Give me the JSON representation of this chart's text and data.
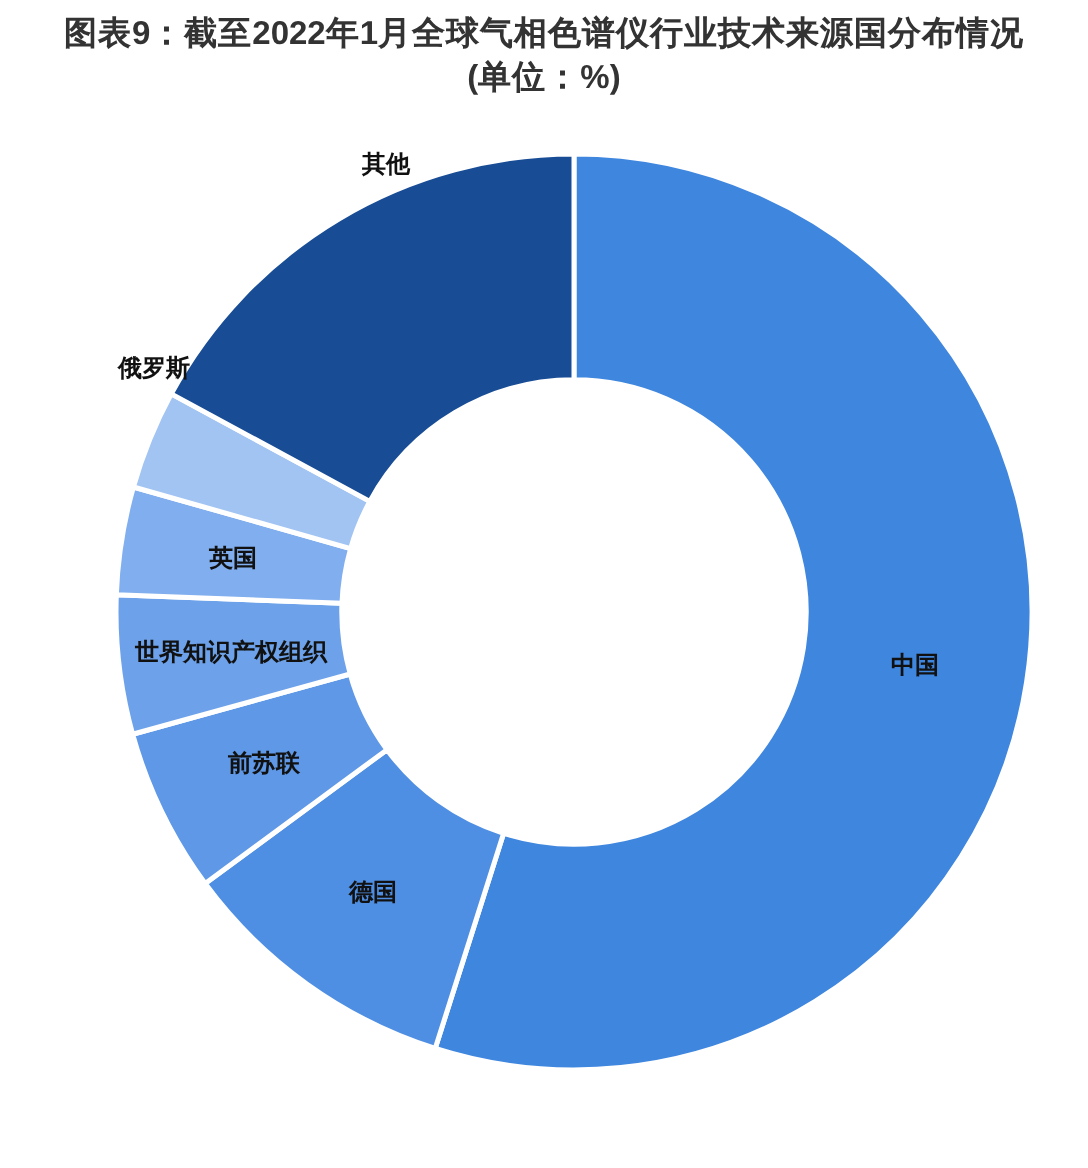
{
  "chart_data": {
    "type": "donut",
    "title": "图表9：截至2022年1月全球气相色谱仪行业技术来源国分布情况(单位：%)",
    "categories": [
      "中国",
      "德国",
      "前苏联",
      "世界知识产权组织",
      "英国",
      "俄罗斯",
      "其他"
    ],
    "values": [
      54.9,
      10.0,
      5.8,
      4.9,
      3.8,
      3.5,
      17.1
    ],
    "colors": [
      "#3f86df",
      "#4f8fe3",
      "#5e98e6",
      "#6da2ea",
      "#80aeee",
      "#a2c4f3",
      "#184c95"
    ]
  }
}
